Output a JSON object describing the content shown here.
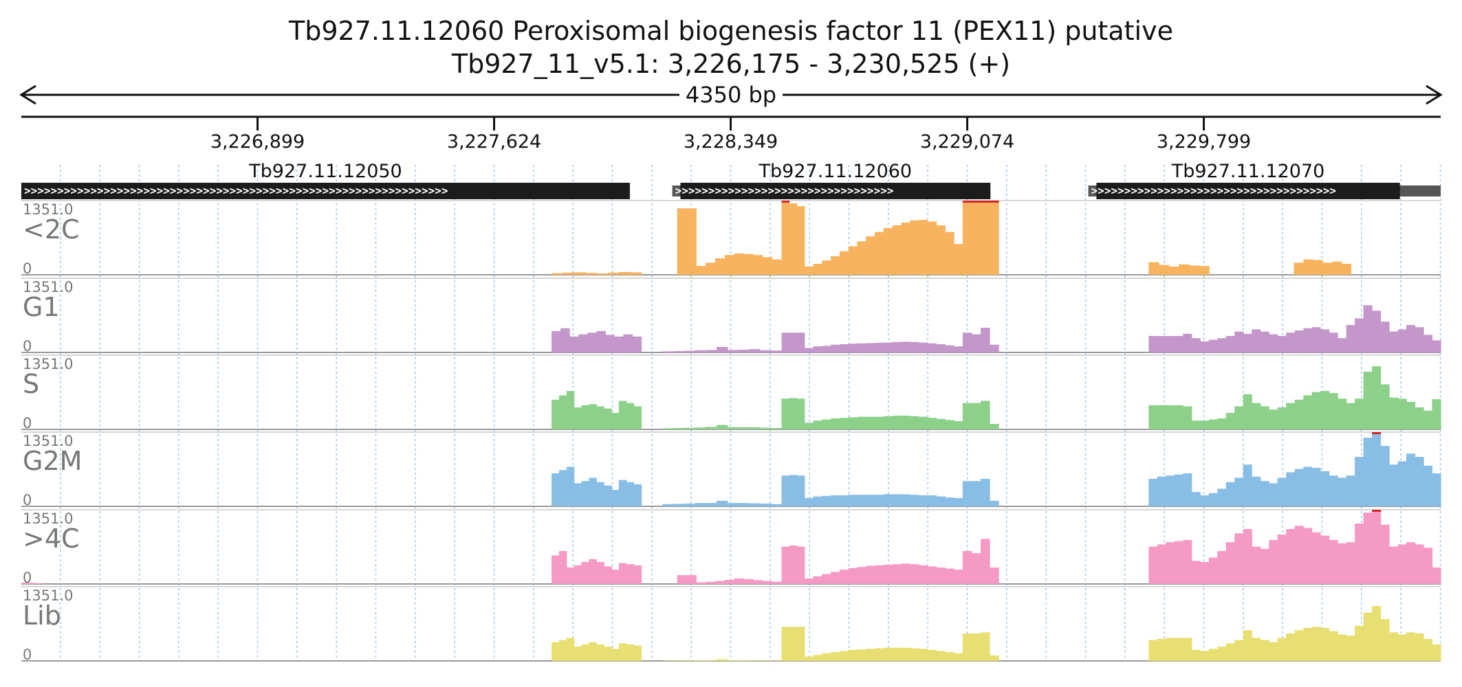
{
  "header": {
    "title": "Tb927.11.12060  Peroxisomal biogenesis factor 11 (PEX11)  putative",
    "subtitle": "Tb927_11_v5.1: 3,226,175 - 3,230,525 (+)",
    "span_label": "4350 bp"
  },
  "chart_data": {
    "type": "area",
    "region": {
      "chromosome": "Tb927_11_v5.1",
      "start": 3226175,
      "end": 3230525,
      "strand": "+"
    },
    "x_ticks": [
      {
        "value": 3226899,
        "label": "3,226,899"
      },
      {
        "value": 3227624,
        "label": "3,227,624"
      },
      {
        "value": 3228349,
        "label": "3,228,349"
      },
      {
        "value": 3229074,
        "label": "3,229,074"
      },
      {
        "value": 3229799,
        "label": "3,229,799"
      }
    ],
    "genes": [
      {
        "name": "Tb927.11.12050",
        "start": 3226175,
        "end": 3228040,
        "utr_start": 3226175,
        "utr_end": 3228040
      },
      {
        "name": "Tb927.11.12060",
        "start": 3228195,
        "end": 3229145,
        "utr_start": 3228170,
        "utr_end": 3229145
      },
      {
        "name": "Tb927.11.12070",
        "start": 3229470,
        "end": 3230400,
        "utr_start": 3229445,
        "utr_end": 3230525
      }
    ],
    "tracks": [
      {
        "name": "<2C",
        "max_label": "1351.0",
        "min_label": "0",
        "color": "#f8b35e",
        "segments": [
          {
            "start": 3227800,
            "end": 3228075,
            "values": [
              30,
              40,
              45,
              35,
              25,
              40,
              50,
              45
            ]
          },
          {
            "start": 3228185,
            "end": 3228505,
            "values": [
              1210,
              1210,
              160,
              220,
              300,
              360,
              390,
              380,
              360,
              320,
              280
            ]
          },
          {
            "start": 3228505,
            "end": 3228575,
            "values": [
              1351,
              1300,
              1250
            ]
          },
          {
            "start": 3228575,
            "end": 3229060,
            "values": [
              150,
              200,
              260,
              340,
              430,
              520,
              610,
              700,
              780,
              850,
              900,
              950,
              990,
              1000,
              970,
              900,
              780,
              560
            ]
          },
          {
            "start": 3229060,
            "end": 3229170,
            "values": [
              1351,
              1351,
              1351,
              1351
            ]
          },
          {
            "start": 3229630,
            "end": 3229815,
            "values": [
              230,
              180,
              150,
              190,
              170,
              160
            ]
          },
          {
            "start": 3230075,
            "end": 3230250,
            "values": [
              220,
              280,
              270,
              220,
              240,
              200
            ]
          }
        ]
      },
      {
        "name": "G1",
        "max_label": "1351.0",
        "min_label": "0",
        "color": "#c497cb",
        "segments": [
          {
            "start": 3227800,
            "end": 3228075,
            "values": [
              390,
              440,
              290,
              330,
              360,
              390,
              320,
              290,
              330,
              290
            ]
          },
          {
            "start": 3228140,
            "end": 3228505,
            "values": [
              20,
              25,
              30,
              40,
              45,
              100,
              45,
              50,
              60,
              40,
              35
            ]
          },
          {
            "start": 3228505,
            "end": 3228575,
            "values": [
              360,
              360,
              360
            ]
          },
          {
            "start": 3228575,
            "end": 3229060,
            "values": [
              80,
              110,
              120,
              140,
              150,
              160,
              165,
              170,
              175,
              180,
              190,
              195,
              190,
              180,
              165,
              150,
              130,
              110
            ]
          },
          {
            "start": 3229060,
            "end": 3229170,
            "values": [
              360,
              330,
              450,
              140
            ]
          },
          {
            "start": 3229630,
            "end": 3230525,
            "values": [
              300,
              300,
              300,
              300,
              340,
              260,
              200,
              230,
              260,
              300,
              380,
              340,
              420,
              380,
              330,
              300,
              360,
              400,
              440,
              460,
              420,
              360,
              260,
              500,
              620,
              860,
              760,
              560,
              380,
              420,
              500,
              460,
              320,
              220
            ]
          }
        ]
      },
      {
        "name": "S",
        "max_label": "1351.0",
        "min_label": "0",
        "color": "#8cd08a",
        "segments": [
          {
            "start": 3227800,
            "end": 3228075,
            "values": [
              540,
              620,
              700,
              400,
              440,
              460,
              420,
              380,
              300,
              520,
              480,
              420
            ]
          },
          {
            "start": 3228140,
            "end": 3228505,
            "values": [
              20,
              25,
              30,
              35,
              45,
              80,
              40,
              40,
              40,
              30,
              25
            ]
          },
          {
            "start": 3228505,
            "end": 3228575,
            "values": [
              560,
              570,
              560
            ]
          },
          {
            "start": 3228575,
            "end": 3229060,
            "values": [
              120,
              160,
              180,
              200,
              210,
              220,
              230,
              230,
              230,
              240,
              250,
              250,
              240,
              230,
              210,
              190,
              170,
              150
            ]
          },
          {
            "start": 3229060,
            "end": 3229170,
            "values": [
              480,
              480,
              520,
              100
            ]
          },
          {
            "start": 3229630,
            "end": 3230525,
            "values": [
              440,
              440,
              440,
              440,
              420,
              160,
              160,
              180,
              200,
              300,
              420,
              640,
              480,
              420,
              360,
              400,
              480,
              540,
              620,
              680,
              700,
              660,
              560,
              480,
              560,
              1050,
              1150,
              820,
              580,
              560,
              500,
              400,
              340,
              550
            ]
          }
        ]
      },
      {
        "name": "G2M",
        "max_label": "1351.0",
        "min_label": "0",
        "color": "#88bde5",
        "segments": [
          {
            "start": 3227800,
            "end": 3228075,
            "values": [
              600,
              660,
              720,
              420,
              460,
              520,
              440,
              380,
              300,
              480,
              440,
              400
            ]
          },
          {
            "start": 3228140,
            "end": 3228505,
            "values": [
              40,
              45,
              50,
              60,
              60,
              100,
              60,
              60,
              55,
              50,
              40
            ]
          },
          {
            "start": 3228505,
            "end": 3228575,
            "values": [
              560,
              570,
              560
            ]
          },
          {
            "start": 3228575,
            "end": 3229060,
            "values": [
              150,
              180,
              190,
              200,
              200,
              210,
              210,
              210,
              210,
              220,
              220,
              220,
              210,
              200,
              200,
              180,
              160,
              150
            ]
          },
          {
            "start": 3229060,
            "end": 3229170,
            "values": [
              460,
              460,
              500,
              100
            ]
          },
          {
            "start": 3229630,
            "end": 3230525,
            "values": [
              500,
              540,
              560,
              580,
              600,
              260,
              200,
              240,
              320,
              440,
              520,
              760,
              540,
              460,
              420,
              520,
              620,
              680,
              720,
              700,
              640,
              560,
              520,
              560,
              900,
              1250,
              1351,
              1100,
              760,
              820,
              960,
              900,
              740,
              600
            ]
          }
        ]
      },
      {
        "name": ">4C",
        "max_label": "1351.0",
        "min_label": "0",
        "color": "#f49ac5",
        "segments": [
          {
            "start": 3226175,
            "end": 3226240,
            "values": [
              25,
              20,
              15
            ]
          },
          {
            "start": 3227800,
            "end": 3228075,
            "values": [
              520,
              600,
              300,
              340,
              400,
              450,
              400,
              320,
              260,
              380,
              360,
              340
            ]
          },
          {
            "start": 3228185,
            "end": 3228505,
            "values": [
              160,
              160,
              30,
              40,
              55,
              75,
              100,
              90,
              70,
              55,
              40
            ]
          },
          {
            "start": 3228505,
            "end": 3228575,
            "values": [
              680,
              700,
              680
            ]
          },
          {
            "start": 3228575,
            "end": 3229060,
            "values": [
              100,
              140,
              180,
              220,
              260,
              290,
              310,
              330,
              340,
              350,
              360,
              370,
              360,
              340,
              320,
              300,
              280,
              260
            ]
          },
          {
            "start": 3229060,
            "end": 3229170,
            "values": [
              600,
              560,
              820,
              300
            ]
          },
          {
            "start": 3229630,
            "end": 3230525,
            "values": [
              680,
              720,
              760,
              780,
              800,
              420,
              400,
              480,
              600,
              760,
              920,
              1000,
              680,
              640,
              800,
              900,
              1000,
              1060,
              1020,
              940,
              880,
              800,
              740,
              760,
              1100,
              1300,
              1351,
              1080,
              680,
              720,
              760,
              720,
              660,
              300
            ]
          }
        ]
      },
      {
        "name": "Lib",
        "max_label": "1351.0",
        "min_label": "0",
        "color": "#e8df72",
        "segments": [
          {
            "start": 3227800,
            "end": 3228075,
            "values": [
              340,
              380,
              420,
              260,
              300,
              340,
              300,
              260,
              220,
              320,
              300,
              280
            ]
          },
          {
            "start": 3228140,
            "end": 3228505,
            "values": [
              8,
              10,
              10,
              12,
              12,
              30,
              12,
              12,
              10,
              10,
              8
            ]
          },
          {
            "start": 3228505,
            "end": 3228575,
            "values": [
              620,
              620,
              620
            ]
          },
          {
            "start": 3228575,
            "end": 3229060,
            "values": [
              80,
              110,
              140,
              160,
              180,
              200,
              210,
              220,
              230,
              240,
              240,
              240,
              230,
              220,
              200,
              180,
              160,
              140
            ]
          },
          {
            "start": 3229060,
            "end": 3229170,
            "values": [
              500,
              500,
              520,
              100
            ]
          },
          {
            "start": 3229630,
            "end": 3230525,
            "values": [
              380,
              400,
              420,
              420,
              420,
              200,
              180,
              220,
              260,
              320,
              380,
              560,
              420,
              380,
              340,
              420,
              500,
              560,
              600,
              620,
              600,
              540,
              480,
              460,
              640,
              880,
              1000,
              760,
              520,
              480,
              520,
              500,
              400,
              300
            ]
          }
        ]
      }
    ]
  }
}
